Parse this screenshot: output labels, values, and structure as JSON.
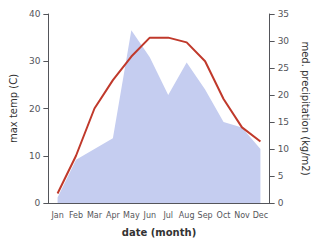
{
  "chart_data": {
    "type": "line",
    "categories": [
      "Jan",
      "Feb",
      "Mar",
      "Apr",
      "May",
      "Jun",
      "Jul",
      "Aug",
      "Sep",
      "Oct",
      "Nov",
      "Dec"
    ],
    "xlabel": "date (month)",
    "ylabel": "max temp (C)",
    "y2label": "med. precipitation (kg/m2)",
    "ylim": [
      0,
      40
    ],
    "yticks": [
      0,
      10,
      20,
      30,
      40
    ],
    "y2lim": [
      0,
      35
    ],
    "y2ticks": [
      0,
      5,
      10,
      15,
      20,
      25,
      30,
      35
    ],
    "grid": false,
    "series": [
      {
        "type": "area",
        "axis": "y2",
        "color": "#c5cdf0",
        "values": [
          1,
          8,
          10,
          12,
          32,
          27,
          20,
          26,
          21,
          15,
          14,
          10
        ]
      },
      {
        "type": "line",
        "color": "#c0392b",
        "values": [
          2,
          10,
          20,
          26,
          31,
          35,
          35,
          34,
          30,
          22,
          16,
          13
        ]
      }
    ]
  }
}
